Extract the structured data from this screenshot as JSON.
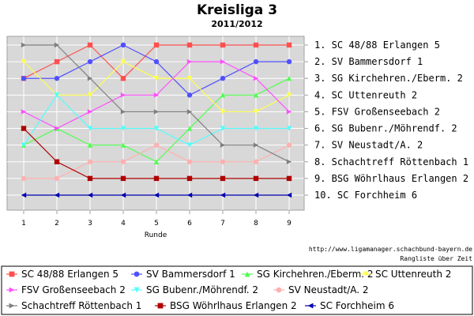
{
  "chart_data": {
    "type": "line",
    "title": "Kreisliga 3",
    "subtitle": "2011/2012",
    "xlabel": "Runde",
    "ylabel": "",
    "x": [
      1,
      2,
      3,
      4,
      5,
      6,
      7,
      8,
      9
    ],
    "ylim": [
      1,
      10
    ],
    "y_inverted": true,
    "grid": true,
    "rank_labels": [
      "1. SC 48/88 Erlangen 5",
      "2. SV Bammersdorf 1",
      "3. SG Kirchehren./Eberm. 2",
      "4. SC Uttenreuth 2",
      "5. FSV Großenseebach 2",
      "6. SG Bubenr./Möhrendf. 2",
      "7. SV Neustadt/A. 2",
      "8. Schachtreff Röttenbach 1",
      "9. BSG Wöhrlhaus Erlangen 2",
      "10. SC Forchheim 6"
    ],
    "series": [
      {
        "name": "SC 48/88 Erlangen 5",
        "color": "#ff5050",
        "marker": "square",
        "values": [
          3,
          2,
          1,
          3,
          1,
          1,
          1,
          1,
          1
        ]
      },
      {
        "name": "SV Bammersdorf 1",
        "color": "#5050ff",
        "marker": "circle",
        "values": [
          3,
          3,
          2,
          1,
          2,
          4,
          3,
          2,
          2
        ]
      },
      {
        "name": "SG Kirchehren./Eberm. 2",
        "color": "#50ff50",
        "marker": "triangle-up",
        "values": [
          7,
          6,
          7,
          7,
          8,
          6,
          4,
          4,
          3
        ]
      },
      {
        "name": "SC Uttenreuth 2",
        "color": "#ffff50",
        "marker": "triangle-down",
        "values": [
          2,
          4,
          4,
          2,
          3,
          3,
          5,
          5,
          4
        ]
      },
      {
        "name": "FSV Großenseebach 2",
        "color": "#ff50ff",
        "marker": "triangle-right",
        "values": [
          5,
          6,
          5,
          4,
          4,
          2,
          2,
          3,
          5
        ]
      },
      {
        "name": "SG Bubenr./Möhrendf. 2",
        "color": "#50ffff",
        "marker": "triangle-down",
        "values": [
          7,
          4,
          6,
          6,
          6,
          7,
          6,
          6,
          6
        ]
      },
      {
        "name": "SV Neustadt/A. 2",
        "color": "#ffb0b0",
        "marker": "circle",
        "values": [
          9,
          9,
          8,
          8,
          7,
          8,
          8,
          8,
          7
        ]
      },
      {
        "name": "Schachtreff Röttenbach 1",
        "color": "#808080",
        "marker": "triangle-right",
        "values": [
          1,
          1,
          3,
          5,
          5,
          5,
          7,
          7,
          8
        ]
      },
      {
        "name": "BSG Wöhrlhaus Erlangen 2",
        "color": "#b00000",
        "marker": "square",
        "values": [
          6,
          8,
          9,
          9,
          9,
          9,
          9,
          9,
          9
        ]
      },
      {
        "name": "SC Forchheim 6",
        "color": "#0000b0",
        "marker": "triangle-left",
        "values": [
          10,
          10,
          10,
          10,
          10,
          10,
          10,
          10,
          10
        ]
      }
    ],
    "legend_position": "bottom",
    "footer": [
      "http://www.ligamanager.schachbund-bayern.de",
      "Rangliste über Zeit"
    ]
  }
}
